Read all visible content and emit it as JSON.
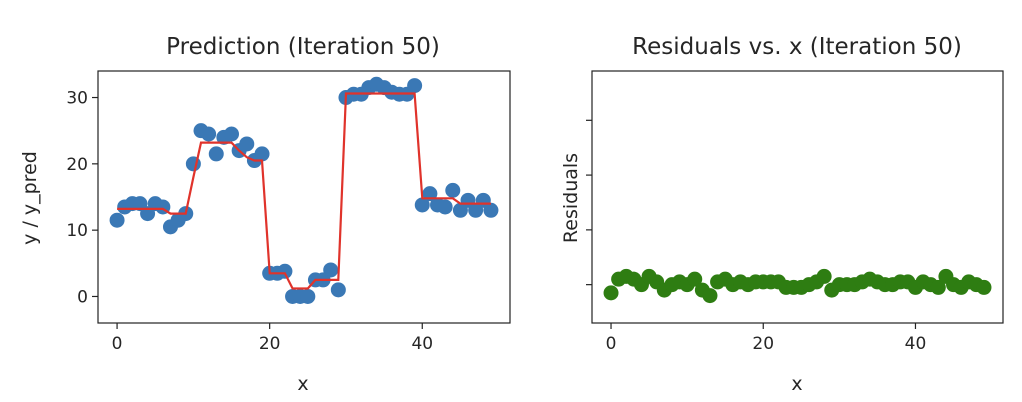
{
  "chart_data": [
    {
      "type": "scatter",
      "title": "Prediction (Iteration 50)",
      "xlabel": "x",
      "ylabel": "y / y_pred",
      "xlim": [
        -2.5,
        51.5
      ],
      "ylim": [
        -4,
        34
      ],
      "xticks": [
        0,
        20,
        40
      ],
      "yticks": [
        0,
        10,
        20,
        30
      ],
      "series": [
        {
          "name": "y",
          "kind": "scatter",
          "color": "#3a78b5",
          "x": [
            0,
            1,
            2,
            3,
            4,
            5,
            6,
            7,
            8,
            9,
            10,
            11,
            12,
            13,
            14,
            15,
            16,
            17,
            18,
            19,
            20,
            21,
            22,
            23,
            24,
            25,
            26,
            27,
            28,
            29,
            30,
            31,
            32,
            33,
            34,
            35,
            36,
            37,
            38,
            39,
            40,
            41,
            42,
            43,
            44,
            45,
            46,
            47,
            48,
            49
          ],
          "y": [
            11.5,
            13.5,
            14,
            14,
            12.5,
            14,
            13.5,
            10.5,
            11.5,
            12.5,
            20,
            25,
            24.5,
            21.5,
            24,
            24.5,
            22,
            23,
            20.5,
            21.5,
            3.5,
            3.5,
            3.8,
            0,
            0,
            0,
            2.5,
            2.5,
            4,
            1,
            30,
            30.5,
            30.5,
            31.5,
            32,
            31.5,
            30.8,
            30.5,
            30.5,
            31.8,
            13.8,
            15.5,
            13.8,
            13.5,
            16,
            13,
            14.5,
            13,
            14.5,
            13
          ]
        },
        {
          "name": "y_pred",
          "kind": "step-line",
          "color": "#e0332b",
          "x": [
            0,
            1,
            2,
            3,
            4,
            5,
            6,
            7,
            8,
            9,
            10,
            11,
            12,
            13,
            14,
            15,
            16,
            17,
            18,
            19,
            20,
            21,
            22,
            23,
            24,
            25,
            26,
            27,
            28,
            29,
            30,
            31,
            32,
            33,
            34,
            35,
            36,
            37,
            38,
            39,
            40,
            41,
            42,
            43,
            44,
            45,
            46,
            47,
            48,
            49
          ],
          "y": [
            13.2,
            13.2,
            13.2,
            13.2,
            13.2,
            13.2,
            13.2,
            12.5,
            12.5,
            12.5,
            18,
            23.2,
            23.2,
            23.2,
            23.2,
            23.2,
            22,
            21,
            20.5,
            20.5,
            3.5,
            3.5,
            3.5,
            1.2,
            1.2,
            1.2,
            2.5,
            2.5,
            2.5,
            2.5,
            30.6,
            30.6,
            30.6,
            30.6,
            30.6,
            30.6,
            30.6,
            30.6,
            30.6,
            30.6,
            14.8,
            14.8,
            14.8,
            14.8,
            14.8,
            14,
            14,
            14,
            14,
            14
          ]
        }
      ]
    },
    {
      "type": "scatter",
      "title": "Residuals vs. x (Iteration 50)",
      "xlabel": "x",
      "ylabel": "Residuals",
      "xlim": [
        -2.5,
        51.5
      ],
      "ylim": [
        -1.3,
        3.3
      ],
      "xticks": [
        0,
        20,
        40
      ],
      "yticks_unlabeled": [
        -0.6,
        0.4,
        1.4,
        2.4
      ],
      "series": [
        {
          "name": "residuals",
          "kind": "scatter",
          "color": "#2e7d12",
          "x": [
            0,
            1,
            2,
            3,
            4,
            5,
            6,
            7,
            8,
            9,
            10,
            11,
            12,
            13,
            14,
            15,
            16,
            17,
            18,
            19,
            20,
            21,
            22,
            23,
            24,
            25,
            26,
            27,
            28,
            29,
            30,
            31,
            32,
            33,
            34,
            35,
            36,
            37,
            38,
            39,
            40,
            41,
            42,
            43,
            44,
            45,
            46,
            47,
            48,
            49
          ],
          "y": [
            -0.75,
            -0.5,
            -0.45,
            -0.5,
            -0.6,
            -0.45,
            -0.55,
            -0.7,
            -0.6,
            -0.55,
            -0.6,
            -0.5,
            -0.7,
            -0.8,
            -0.55,
            -0.5,
            -0.6,
            -0.55,
            -0.6,
            -0.55,
            -0.55,
            -0.55,
            -0.55,
            -0.65,
            -0.65,
            -0.65,
            -0.6,
            -0.55,
            -0.45,
            -0.7,
            -0.6,
            -0.6,
            -0.6,
            -0.55,
            -0.5,
            -0.55,
            -0.6,
            -0.6,
            -0.55,
            -0.55,
            -0.65,
            -0.55,
            -0.6,
            -0.65,
            -0.45,
            -0.6,
            -0.65,
            -0.55,
            -0.6,
            -0.65
          ]
        }
      ]
    }
  ]
}
